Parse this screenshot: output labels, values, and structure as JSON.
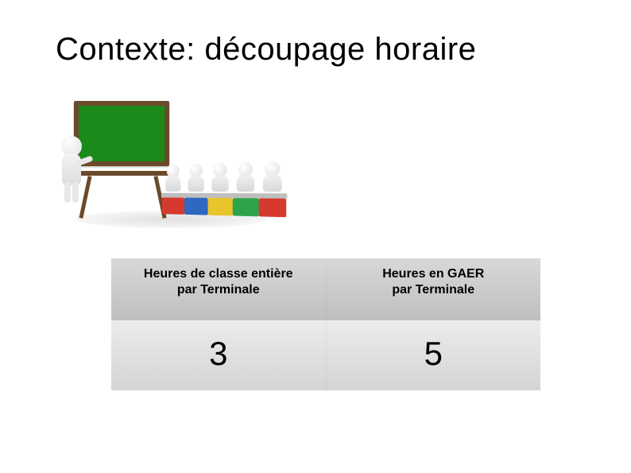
{
  "title": "Contexte: découpage horaire",
  "illustration": {
    "board_color": "#1a8a1a",
    "board_frame": "#6b4a2b",
    "chair_colors": [
      "#d63a2e",
      "#2f68c0",
      "#e8c52a",
      "#2fa34a",
      "#d63a2e"
    ]
  },
  "table": {
    "type": "table",
    "columns": [
      {
        "header_line1": "Heures de classe entière",
        "header_line2": "par Terminale"
      },
      {
        "header_line1": "Heures en GAER",
        "header_line2": "par Terminale"
      }
    ],
    "rows": [
      [
        "3",
        "5"
      ]
    ],
    "header_bg_gradient": [
      "#d8d8d8",
      "#bfbfbf"
    ],
    "value_bg_gradient": [
      "#ececec",
      "#d4d4d4"
    ],
    "header_fontsize": 16,
    "value_fontsize": 42,
    "text_color": "#000000"
  },
  "background_color": "#ffffff"
}
